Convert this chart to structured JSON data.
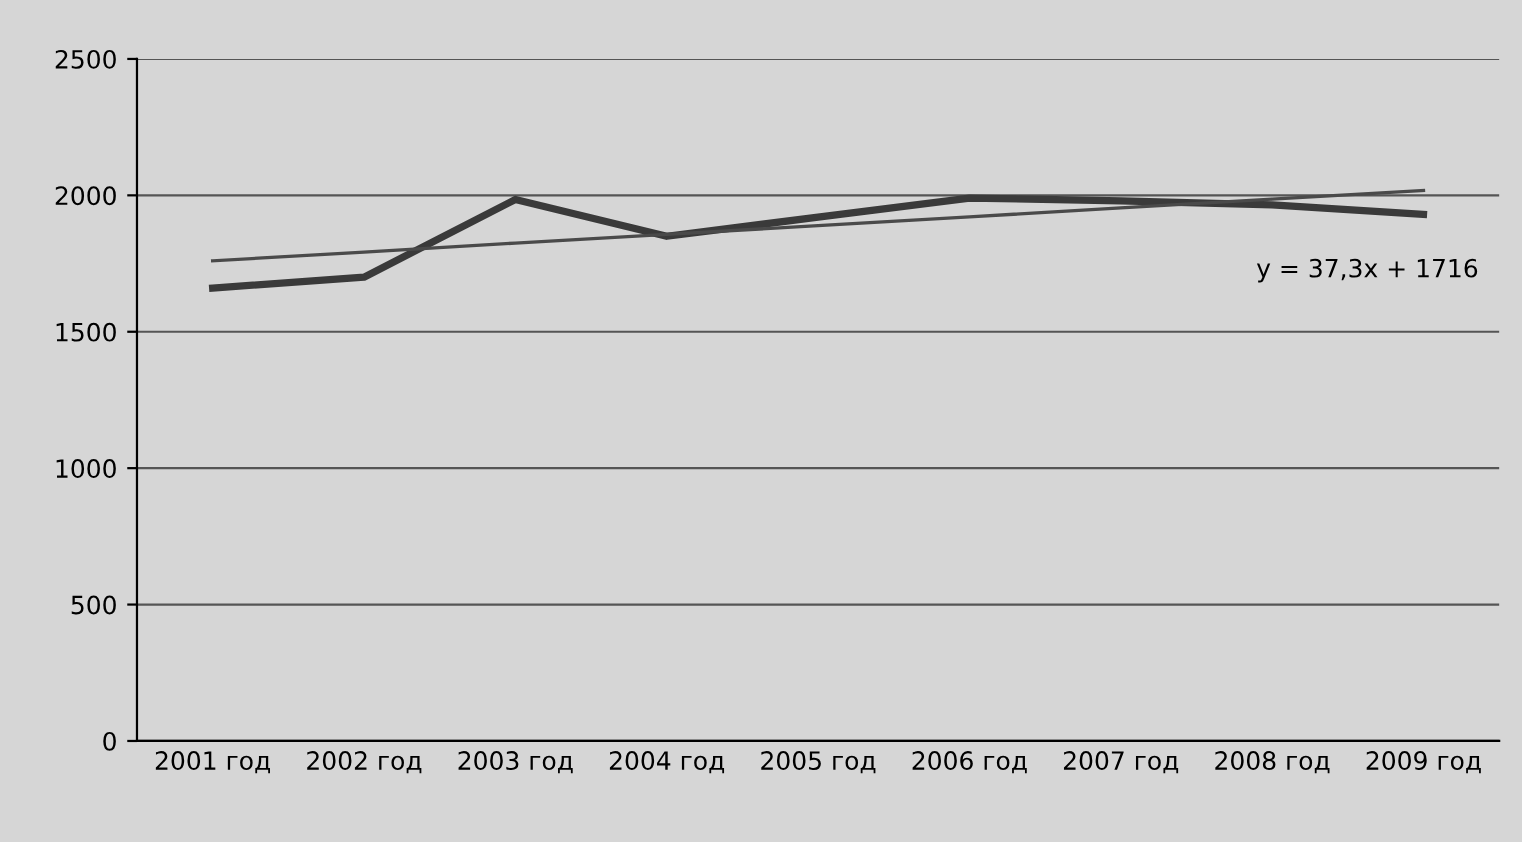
{
  "chart_data": {
    "type": "line",
    "categories": [
      "2001 год",
      "2002 год",
      "2003 год",
      "2004 год",
      "2005 год",
      "2006 год",
      "2007 год",
      "2008 год",
      "2009 год"
    ],
    "series": [
      {
        "color": "#3a3a3a",
        "values": [
          1660,
          1700,
          1985,
          1850,
          1920,
          1990,
          1980,
          1965,
          1930
        ]
      },
      {
        "color": "#4a4a4a",
        "values": [
          1760,
          1792,
          1825,
          1857,
          1889,
          1921,
          1954,
          1986,
          2018
        ]
      }
    ],
    "ylim": [
      0,
      2500
    ],
    "yticks": [
      0,
      500,
      1000,
      1500,
      2000,
      2500
    ],
    "grid": "y",
    "annotations": [
      "y = 37,3x + 1716"
    ]
  }
}
